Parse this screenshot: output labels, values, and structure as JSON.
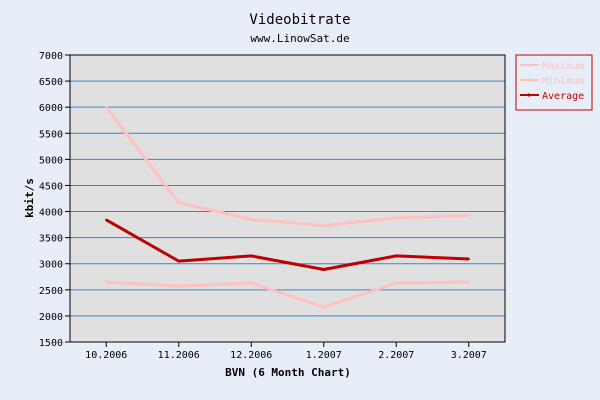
{
  "chart_data": {
    "type": "line",
    "title": "Videobitrate",
    "subtitle": "www.LinowSat.de",
    "xlabel": "BVN (6 Month Chart)",
    "ylabel": "kbit/s",
    "categories": [
      "10.2006",
      "11.2006",
      "12.2006",
      "1.2007",
      "2.2007",
      "3.2007"
    ],
    "ylim": [
      1500,
      7000
    ],
    "yticks": [
      1500,
      2000,
      2500,
      3000,
      3500,
      4000,
      4500,
      5000,
      5500,
      6000,
      6500,
      7000
    ],
    "grid": true,
    "legend_position": "right",
    "series": [
      {
        "name": "Maximum",
        "values": [
          6000,
          4170,
          3850,
          3730,
          3880,
          3920
        ],
        "color": "#ffc0c0",
        "legend_color": "#ffc0c0",
        "width": 3
      },
      {
        "name": "Minimum",
        "values": [
          2650,
          2570,
          2630,
          2170,
          2630,
          2650
        ],
        "color": "#ffc0c0",
        "legend_color": "#ffc0c0",
        "width": 3
      },
      {
        "name": "Average",
        "values": [
          3840,
          3050,
          3150,
          2890,
          3150,
          3090
        ],
        "color": "#c00000",
        "legend_color": "#c00000",
        "width": 3
      }
    ],
    "colors": {
      "background": "#e8eef7",
      "plot_background": "#e0e0e0",
      "grid": "#2a8ad8",
      "axis": "#000000"
    }
  }
}
